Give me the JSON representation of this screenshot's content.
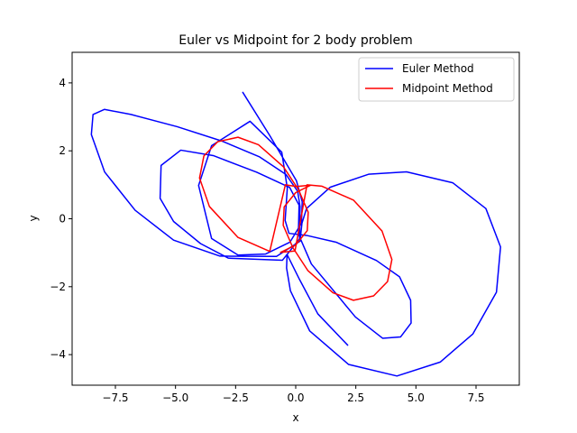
{
  "chart_data": {
    "type": "line",
    "title": "Euler vs Midpoint for 2 body problem",
    "xlabel": "x",
    "ylabel": "y",
    "xlim": [
      -9.3,
      9.3
    ],
    "ylim": [
      -4.9,
      4.9
    ],
    "xticks": [
      -7.5,
      -5.0,
      -2.5,
      0.0,
      2.5,
      5.0,
      7.5
    ],
    "yticks": [
      -4,
      -2,
      0,
      2,
      4
    ],
    "xtick_labels": [
      "−7.5",
      "−5.0",
      "−2.5",
      "0.0",
      "2.5",
      "5.0",
      "7.5"
    ],
    "ytick_labels": [
      "−4",
      "−2",
      "0",
      "2",
      "4"
    ],
    "grid": false,
    "legend_position": "top-right",
    "series": [
      {
        "name": "Euler Method",
        "color": "#0000ff",
        "x": [
          -2.2,
          -1.08,
          0.03,
          0.27,
          0.24,
          -0.24,
          -1.26,
          -2.4,
          -3.5,
          -4.04,
          -3.5,
          -1.9,
          -0.58,
          -0.35,
          -0.44,
          -0.28,
          0.45,
          1.68,
          3.36,
          4.32,
          4.78,
          4.8,
          4.36,
          3.62,
          2.48,
          0.65,
          0.11,
          0.14,
          -0.25,
          -1.62,
          -3.43,
          -4.78,
          -5.6,
          -5.64,
          -5.08,
          -3.96,
          -2.8,
          -0.55,
          0.16,
          0.18,
          0.08,
          -0.4,
          -1.5,
          -3.04,
          -4.93,
          -6.85,
          -7.96,
          -8.43,
          -8.5,
          -7.95,
          -6.68,
          -5.08,
          -3.15,
          -0.8,
          0.18,
          0.26,
          0.45,
          1.44,
          3.03,
          4.61,
          6.53,
          7.91,
          8.52,
          8.35,
          7.37,
          6.01,
          4.21,
          2.2,
          0.58,
          -0.22,
          -0.38,
          -0.36,
          0.16,
          0.92,
          2.16
        ],
        "y": [
          3.72,
          2.45,
          1.12,
          0.5,
          -0.13,
          -0.69,
          -1.04,
          -1.07,
          -0.58,
          0.98,
          2.15,
          2.87,
          1.96,
          0.9,
          -0.05,
          -0.43,
          -0.49,
          -0.69,
          -1.23,
          -1.71,
          -2.4,
          -3.07,
          -3.48,
          -3.52,
          -2.89,
          -1.33,
          -0.45,
          0.4,
          0.92,
          1.37,
          1.86,
          2.02,
          1.57,
          0.6,
          -0.08,
          -0.73,
          -1.16,
          -1.22,
          -0.59,
          0.36,
          0.81,
          1.3,
          1.82,
          2.28,
          2.71,
          3.07,
          3.22,
          3.07,
          2.48,
          1.38,
          0.25,
          -0.63,
          -1.1,
          -1.11,
          -0.66,
          -0.13,
          0.3,
          0.93,
          1.31,
          1.38,
          1.06,
          0.3,
          -0.83,
          -2.16,
          -3.39,
          -4.22,
          -4.63,
          -4.29,
          -3.3,
          -2.12,
          -1.45,
          -1.05,
          -1.79,
          -2.8,
          -3.72
        ]
      },
      {
        "name": "Midpoint Method",
        "color": "#ff0000",
        "x": [
          0.47,
          1.08,
          2.4,
          3.59,
          4.0,
          3.82,
          3.24,
          2.4,
          1.55,
          0.51,
          -0.12,
          -0.52,
          -0.48,
          0.0,
          0.63,
          0.03,
          -0.43,
          -1.08,
          -2.4,
          -3.59,
          -4.0,
          -3.82,
          -3.24,
          -2.4,
          -1.55,
          -0.51,
          0.12,
          0.52,
          0.48,
          0.0,
          -0.63,
          -0.03,
          0.47
        ],
        "y": [
          1.0,
          0.96,
          0.55,
          -0.36,
          -1.2,
          -1.85,
          -2.27,
          -2.4,
          -2.18,
          -1.53,
          -0.85,
          -0.19,
          0.35,
          0.77,
          0.99,
          0.95,
          1.0,
          -0.96,
          -0.55,
          0.36,
          1.2,
          1.85,
          2.27,
          2.4,
          2.18,
          1.53,
          0.85,
          0.19,
          -0.35,
          -0.77,
          -0.99,
          -0.95,
          1.0
        ]
      }
    ]
  }
}
